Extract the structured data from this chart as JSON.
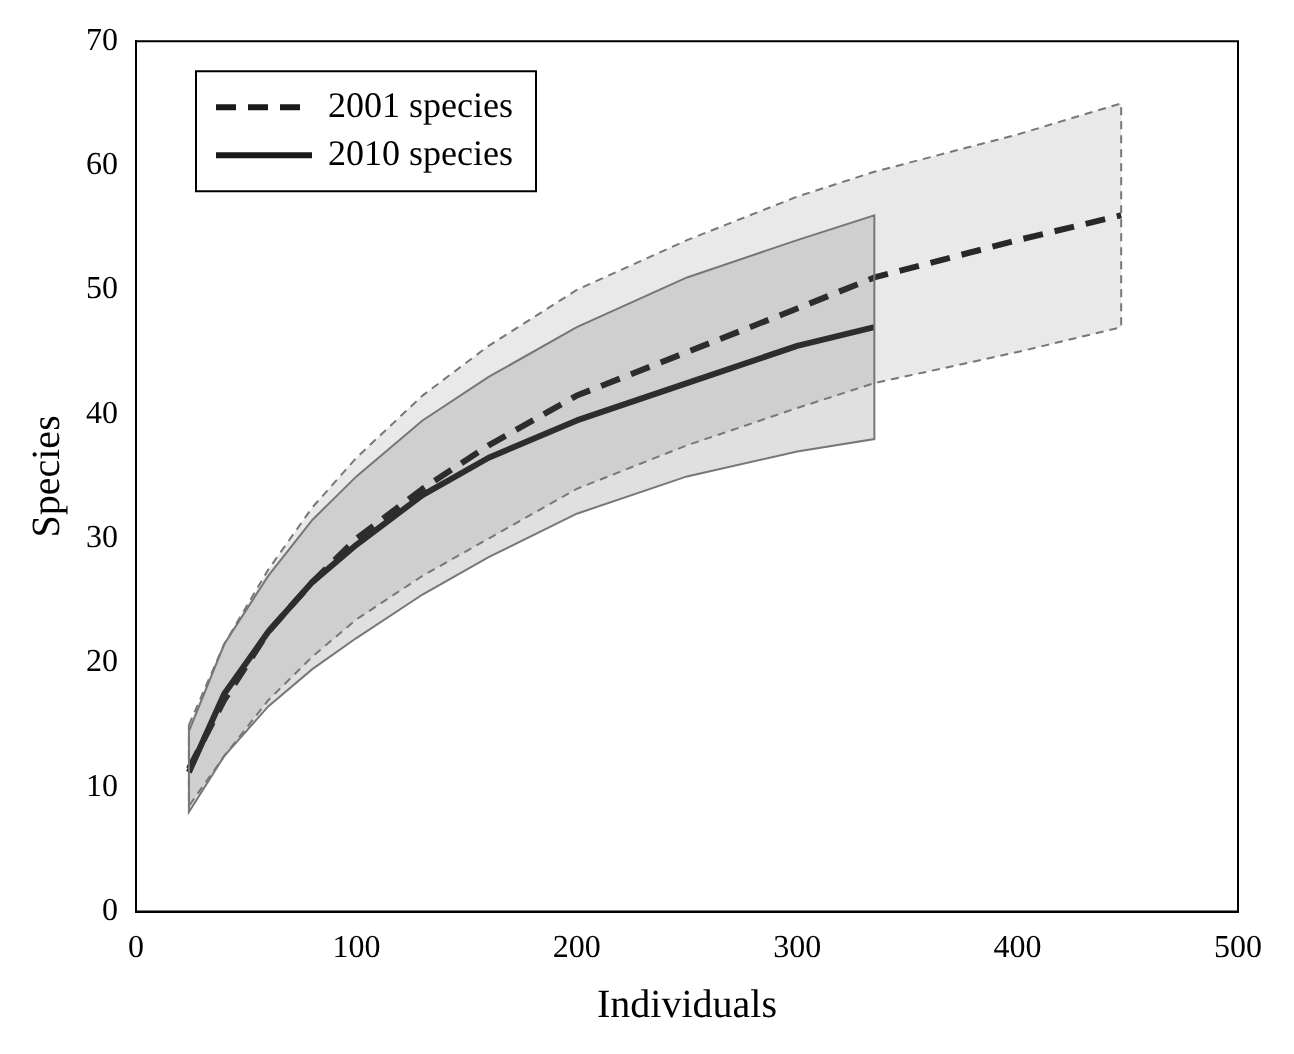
{
  "chart_data": {
    "type": "line",
    "xlabel": "Individuals",
    "ylabel": "Species",
    "xlim": [
      0,
      500
    ],
    "xticks": [
      0,
      100,
      200,
      300,
      400,
      500
    ],
    "ylim": [
      0,
      70
    ],
    "yticks": [
      0,
      10,
      20,
      30,
      40,
      50,
      60,
      70
    ],
    "grid": false,
    "legend": "top left",
    "marker": "none",
    "series": [
      {
        "name": "2001 species",
        "color": "#1a1a1a",
        "line_style": "dashed",
        "x": [
          24,
          40,
          60,
          80,
          100,
          130,
          160,
          200,
          250,
          300,
          335,
          400,
          447
        ],
        "values": [
          11.5,
          17,
          22.5,
          26.5,
          30,
          34,
          37.5,
          41.5,
          45,
          48.5,
          51,
          54,
          56
        ],
        "upper": [
          15,
          21.5,
          27.5,
          32.5,
          36.5,
          41.5,
          45.5,
          50,
          54,
          57.5,
          59.5,
          62.5,
          65
        ],
        "lower": [
          8.5,
          12.5,
          17,
          20.5,
          23.5,
          27,
          30,
          34,
          37.5,
          40.5,
          42.5,
          45,
          47
        ]
      },
      {
        "name": "2010 species",
        "color": "#1a1a1a",
        "line_style": "solid",
        "x": [
          24,
          40,
          60,
          80,
          100,
          130,
          160,
          200,
          250,
          300,
          335
        ],
        "values": [
          11.2,
          17.5,
          22.5,
          26.5,
          29.5,
          33.5,
          36.5,
          39.5,
          42.5,
          45.5,
          47
        ],
        "upper": [
          14.5,
          21.5,
          27,
          31.5,
          35,
          39.5,
          43,
          47,
          51,
          54,
          56
        ],
        "lower": [
          8,
          12.5,
          16.5,
          19.5,
          22,
          25.5,
          28.5,
          32,
          35,
          37,
          38
        ]
      }
    ]
  }
}
